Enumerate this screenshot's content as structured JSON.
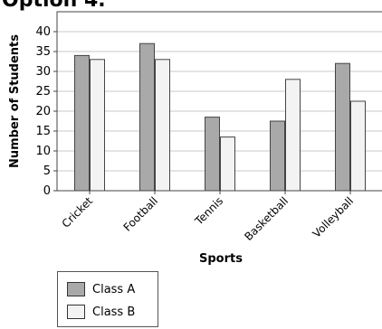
{
  "header": {
    "title": "Option 4."
  },
  "colors": {
    "class_a": "#a9a9a9",
    "class_b": "#f3f3f3",
    "grid": "#c8c8c8",
    "border": "#444444"
  },
  "chart_data": {
    "type": "bar",
    "title": "",
    "xlabel": "Sports",
    "ylabel": "Number of Students",
    "ylim": [
      0,
      45
    ],
    "yticks": [
      0,
      5,
      10,
      15,
      20,
      25,
      30,
      35,
      40
    ],
    "grid": true,
    "categories": [
      "Cricket",
      "Football",
      "Tennis",
      "Basketball",
      "Volleyball"
    ],
    "series": [
      {
        "name": "Class A",
        "values": [
          34,
          37,
          18.5,
          17.5,
          32
        ]
      },
      {
        "name": "Class B",
        "values": [
          33,
          33,
          13.5,
          28,
          22.5
        ]
      }
    ],
    "legend_position": "bottom-left"
  }
}
